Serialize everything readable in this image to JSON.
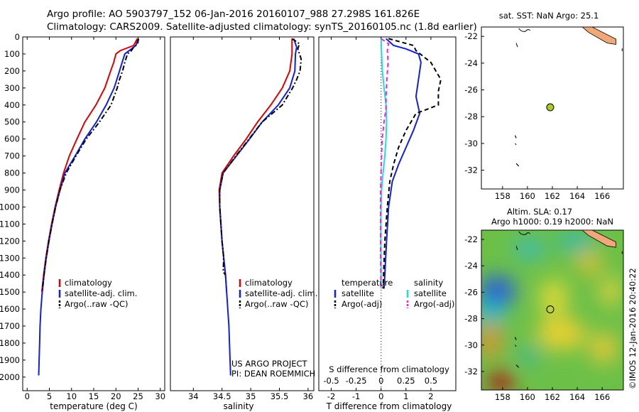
{
  "header": {
    "line1": "Argo profile: AO 5903797_152 06-Jan-2016 20160107_988 27.298S 161.826E",
    "line2": "Climatology: CARS2009. Satellite-adjusted climatology: synTS_20160105.nc (1.8d earlier)"
  },
  "colors": {
    "climatology": "#e00000",
    "satellite": "#1020e0",
    "argo": "#000000",
    "salinity_sat": "#22dddd",
    "salinity_argo": "#ee22ee",
    "land": "#f0a878",
    "float_marker": "#aacc22"
  },
  "depth_axis": {
    "ticks": [
      0,
      100,
      200,
      300,
      400,
      500,
      600,
      700,
      800,
      900,
      1000,
      1100,
      1200,
      1300,
      1400,
      1500,
      1600,
      1700,
      1800,
      1900,
      2000
    ],
    "ylim": [
      0,
      2080
    ]
  },
  "chart_data": [
    {
      "id": "temperature",
      "type": "line",
      "xlabel": "temperature (deg C)",
      "xlim": [
        -1,
        31
      ],
      "xticks": [
        0,
        5,
        10,
        15,
        20,
        25,
        30
      ],
      "ylim": [
        0,
        2080
      ],
      "legend": {
        "position": "bottom-left",
        "entries": [
          "climatology",
          "satellite-adj. clim.",
          "Argo(..raw -QC)"
        ]
      },
      "series": [
        {
          "name": "climatology",
          "style": "solid",
          "color": "#e00000",
          "points": [
            [
              24.8,
              10
            ],
            [
              24.0,
              50
            ],
            [
              21.0,
              80
            ],
            [
              20.0,
              100
            ],
            [
              19.5,
              150
            ],
            [
              18.8,
              200
            ],
            [
              17.5,
              300
            ],
            [
              15.5,
              400
            ],
            [
              13.0,
              500
            ],
            [
              11.2,
              600
            ],
            [
              9.5,
              700
            ],
            [
              8.2,
              800
            ],
            [
              7.2,
              900
            ],
            [
              6.3,
              1000
            ],
            [
              5.5,
              1100
            ],
            [
              4.8,
              1200
            ],
            [
              4.2,
              1300
            ],
            [
              3.7,
              1400
            ],
            [
              3.3,
              1500
            ]
          ]
        },
        {
          "name": "satellite-adj. clim.",
          "style": "solid",
          "color": "#1020e0",
          "points": [
            [
              25.0,
              10
            ],
            [
              24.5,
              50
            ],
            [
              23.0,
              80
            ],
            [
              22.0,
              100
            ],
            [
              21.4,
              150
            ],
            [
              20.8,
              200
            ],
            [
              19.6,
              300
            ],
            [
              17.8,
              400
            ],
            [
              15.6,
              500
            ],
            [
              13.0,
              600
            ],
            [
              10.8,
              700
            ],
            [
              8.5,
              800
            ],
            [
              7.4,
              900
            ],
            [
              6.4,
              1000
            ],
            [
              5.6,
              1100
            ],
            [
              4.9,
              1200
            ],
            [
              4.3,
              1300
            ],
            [
              3.8,
              1400
            ],
            [
              3.4,
              1500
            ],
            [
              3.1,
              1600
            ],
            [
              2.9,
              1700
            ],
            [
              2.8,
              1800
            ],
            [
              2.7,
              1900
            ],
            [
              2.6,
              1990
            ]
          ]
        },
        {
          "name": "Argo(..raw -QC)",
          "style": "dashdot",
          "color": "#000000",
          "points": [
            [
              25.1,
              10
            ],
            [
              24.9,
              40
            ],
            [
              24.0,
              60
            ],
            [
              23.5,
              80
            ],
            [
              22.6,
              100
            ],
            [
              22.0,
              150
            ],
            [
              21.5,
              200
            ],
            [
              20.8,
              250
            ],
            [
              20.3,
              300
            ],
            [
              18.9,
              400
            ],
            [
              16.3,
              500
            ],
            [
              13.3,
              600
            ],
            [
              11.0,
              700
            ],
            [
              8.8,
              800
            ],
            [
              7.4,
              900
            ],
            [
              6.4,
              1000
            ],
            [
              5.6,
              1100
            ],
            [
              4.9,
              1200
            ],
            [
              4.3,
              1300
            ],
            [
              3.8,
              1400
            ],
            [
              3.4,
              1500
            ]
          ]
        }
      ]
    },
    {
      "id": "salinity",
      "type": "line",
      "xlabel": "salinity",
      "xlim": [
        33.6,
        36.1
      ],
      "xticks": [
        34,
        34.5,
        35,
        35.5,
        36
      ],
      "ylim": [
        0,
        2080
      ],
      "legend": {
        "position": "bottom-right",
        "entries": [
          "climatology",
          "satellite-adj. clim.",
          "Argo(..raw -QC)"
        ]
      },
      "annotation": [
        "US ARGO PROJECT",
        "PI: DEAN ROEMMICH"
      ],
      "series": [
        {
          "name": "climatology",
          "style": "solid",
          "color": "#e00000",
          "points": [
            [
              35.72,
              10
            ],
            [
              35.72,
              100
            ],
            [
              35.68,
              200
            ],
            [
              35.55,
              300
            ],
            [
              35.35,
              400
            ],
            [
              35.12,
              500
            ],
            [
              34.92,
              600
            ],
            [
              34.7,
              700
            ],
            [
              34.5,
              800
            ],
            [
              34.45,
              900
            ],
            [
              34.46,
              1000
            ],
            [
              34.48,
              1100
            ],
            [
              34.5,
              1200
            ],
            [
              34.53,
              1300
            ],
            [
              34.56,
              1400
            ],
            [
              34.58,
              1500
            ]
          ]
        },
        {
          "name": "satellite-adj. clim.",
          "style": "solid",
          "color": "#1020e0",
          "points": [
            [
              35.75,
              10
            ],
            [
              35.8,
              60
            ],
            [
              35.78,
              100
            ],
            [
              35.77,
              200
            ],
            [
              35.68,
              300
            ],
            [
              35.48,
              400
            ],
            [
              35.2,
              500
            ],
            [
              34.98,
              600
            ],
            [
              34.75,
              700
            ],
            [
              34.52,
              800
            ],
            [
              34.46,
              900
            ],
            [
              34.46,
              1000
            ],
            [
              34.48,
              1100
            ],
            [
              34.5,
              1200
            ],
            [
              34.53,
              1300
            ],
            [
              34.56,
              1400
            ],
            [
              34.58,
              1500
            ],
            [
              34.6,
              1600
            ],
            [
              34.62,
              1700
            ],
            [
              34.63,
              1800
            ],
            [
              34.64,
              1900
            ],
            [
              34.65,
              1990
            ]
          ]
        },
        {
          "name": "Argo(..raw -QC)",
          "style": "dashdot",
          "color": "#000000",
          "points": [
            [
              35.72,
              10
            ],
            [
              35.85,
              40
            ],
            [
              35.82,
              70
            ],
            [
              35.88,
              130
            ],
            [
              35.86,
              200
            ],
            [
              35.8,
              250
            ],
            [
              35.73,
              300
            ],
            [
              35.55,
              400
            ],
            [
              35.2,
              500
            ],
            [
              34.97,
              600
            ],
            [
              34.74,
              700
            ],
            [
              34.52,
              800
            ],
            [
              34.46,
              900
            ],
            [
              34.46,
              1000
            ],
            [
              34.48,
              1100
            ],
            [
              34.5,
              1200
            ],
            [
              34.53,
              1300
            ],
            [
              34.52,
              1380
            ],
            [
              34.56,
              1400
            ]
          ]
        }
      ]
    },
    {
      "id": "difference",
      "type": "line",
      "xlabel": "T difference from climatology",
      "xlabel_top": "S difference from climatology",
      "xlim": [
        -2.5,
        3.0
      ],
      "xticks": [
        -2,
        -1,
        0,
        1,
        2
      ],
      "s_ticks": [
        -0.5,
        -0.25,
        0,
        0.25,
        0.5
      ],
      "s_tick_labels": [
        "-0.5",
        "-0.25",
        "0",
        "0.25",
        "0.5"
      ],
      "ylim": [
        0,
        2080
      ],
      "legend": {
        "position": "bottom",
        "temperature_header": "temperature",
        "salinity_header": "salinity",
        "entries": [
          "satellite",
          "Argo(-adj)",
          "satellite",
          "Argo(-adj)"
        ]
      },
      "series": [
        {
          "name": "temperature satellite",
          "style": "solid",
          "color": "#1020e0",
          "points": [
            [
              0.2,
              10
            ],
            [
              0.5,
              50
            ],
            [
              1.0,
              70
            ],
            [
              1.5,
              100
            ],
            [
              1.6,
              150
            ],
            [
              1.5,
              250
            ],
            [
              1.4,
              350
            ],
            [
              1.55,
              450
            ],
            [
              1.3,
              550
            ],
            [
              1.0,
              650
            ],
            [
              0.7,
              750
            ],
            [
              0.45,
              850
            ],
            [
              0.3,
              1000
            ],
            [
              0.22,
              1200
            ],
            [
              0.15,
              1400
            ],
            [
              0.12,
              1480
            ]
          ]
        },
        {
          "name": "temperature Argo(-adj)",
          "style": "dashed",
          "color": "#000000",
          "points": [
            [
              0.3,
              10
            ],
            [
              1.3,
              50
            ],
            [
              1.4,
              80
            ],
            [
              2.0,
              150
            ],
            [
              2.4,
              250
            ],
            [
              2.3,
              320
            ],
            [
              2.3,
              400
            ],
            [
              1.4,
              450
            ],
            [
              1.0,
              550
            ],
            [
              0.7,
              650
            ],
            [
              0.5,
              750
            ],
            [
              0.35,
              850
            ],
            [
              0.25,
              1000
            ],
            [
              0.15,
              1200
            ],
            [
              0.1,
              1400
            ],
            [
              0.08,
              1480
            ]
          ]
        },
        {
          "name": "salinity satellite",
          "style": "solid",
          "color": "#22dddd",
          "points": [
            [
              0.0,
              10
            ],
            [
              0.02,
              100
            ],
            [
              0.05,
              200
            ],
            [
              0.12,
              300
            ],
            [
              0.2,
              400
            ],
            [
              0.22,
              500
            ],
            [
              0.2,
              600
            ],
            [
              0.15,
              700
            ],
            [
              0.08,
              800
            ],
            [
              0.02,
              900
            ],
            [
              0.0,
              1000
            ],
            [
              -0.01,
              1100
            ],
            [
              -0.01,
              1200
            ],
            [
              0.0,
              1300
            ],
            [
              0.0,
              1400
            ],
            [
              0.0,
              1480
            ]
          ]
        },
        {
          "name": "salinity Argo(-adj)",
          "style": "dashed",
          "color": "#ee22ee",
          "points": [
            [
              0.0,
              10
            ],
            [
              0.3,
              40
            ],
            [
              0.25,
              80
            ],
            [
              0.28,
              150
            ],
            [
              0.23,
              250
            ],
            [
              0.2,
              350
            ],
            [
              0.2,
              420
            ],
            [
              0.12,
              500
            ],
            [
              0.04,
              600
            ],
            [
              0.02,
              700
            ],
            [
              0.0,
              800
            ],
            [
              -0.02,
              900
            ],
            [
              -0.02,
              1000
            ],
            [
              -0.02,
              1100
            ],
            [
              -0.02,
              1200
            ],
            [
              -0.02,
              1300
            ],
            [
              -0.01,
              1400
            ],
            [
              -0.01,
              1480
            ]
          ]
        }
      ]
    },
    {
      "id": "sst_map",
      "type": "scatter",
      "title": "sat. SST: NaN Argo: 25.1",
      "xlim": [
        156.3,
        167.7
      ],
      "ylim": [
        -33.4,
        -21.3
      ],
      "xticks": [
        158,
        160,
        162,
        164,
        166
      ],
      "yticks": [
        -22,
        -24,
        -26,
        -28,
        -30,
        -32
      ],
      "float": {
        "lon": 161.826,
        "lat": -27.298
      }
    },
    {
      "id": "sla_map",
      "type": "heatmap",
      "title": "Altim. SLA: 0.17",
      "subtitle": "Argo h1000: 0.19 h2000: NaN",
      "xlim": [
        156.3,
        167.7
      ],
      "ylim": [
        -33.4,
        -21.3
      ],
      "xticks": [
        158,
        160,
        162,
        164,
        166
      ],
      "yticks": [
        -22,
        -24,
        -26,
        -28,
        -30,
        -32
      ],
      "float": {
        "lon": 161.826,
        "lat": -27.298
      }
    }
  ],
  "footer": {
    "imos_stamp": "©IMOS 12-Jan-2016 20:40:22"
  }
}
